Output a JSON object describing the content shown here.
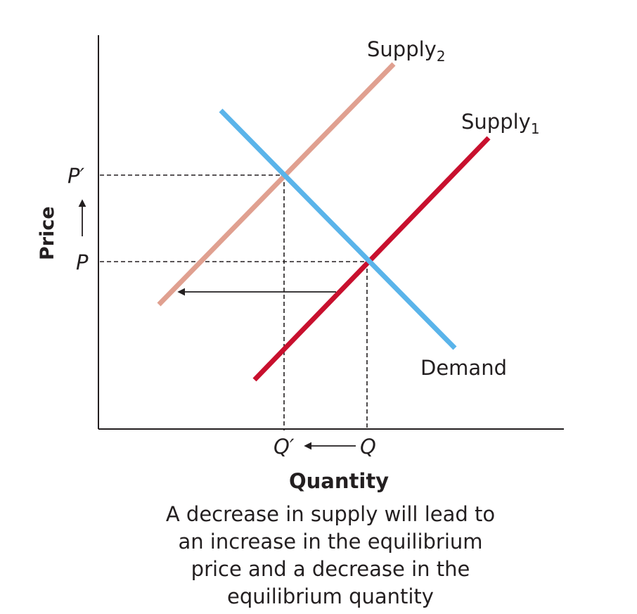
{
  "colors": {
    "supply1": "#c8102e",
    "supply2": "#e0a090",
    "demand": "#5ab4ea",
    "axis": "#231f20",
    "guide": "#231f20"
  },
  "labels": {
    "supply2_main": "Supply",
    "supply2_sub": "2",
    "supply1_main": "Supply",
    "supply1_sub": "1",
    "demand": "Demand",
    "price_axis": "Price",
    "quantity_axis": "Quantity",
    "p_new": "P′",
    "p_old": "P",
    "q_new": "Q′",
    "q_old": "Q"
  },
  "caption": {
    "line1": "A decrease in supply will lead to",
    "line2": "an increase in the equilibrium",
    "line3": "price and a decrease in the",
    "line4": "equilibrium quantity"
  }
}
